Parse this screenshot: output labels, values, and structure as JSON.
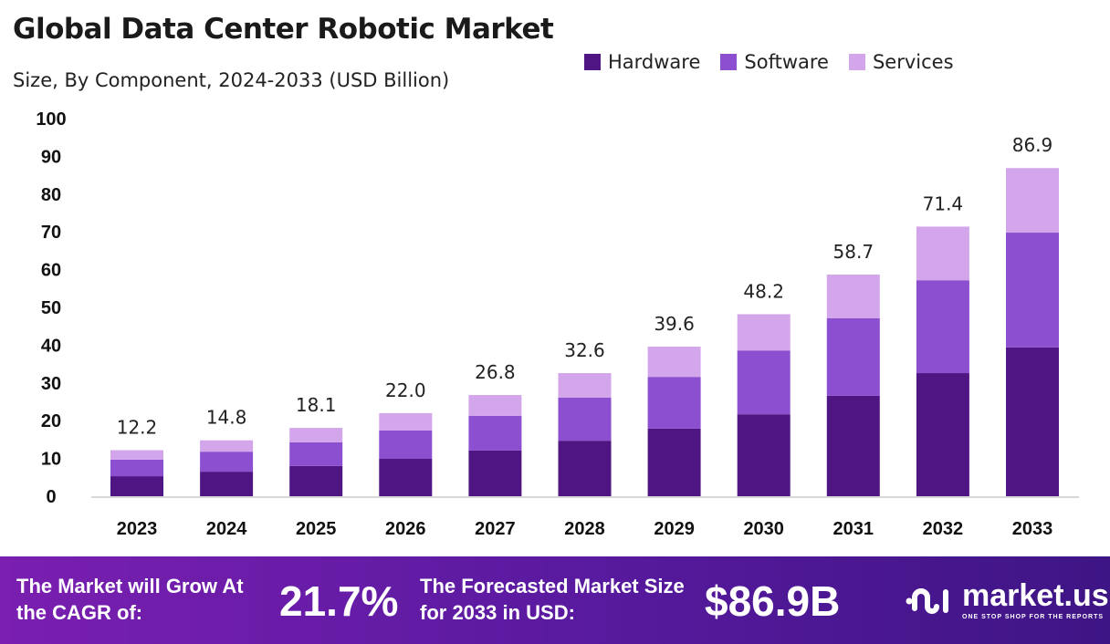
{
  "title": "Global Data Center Robotic Market",
  "subtitle": "Size, By Component, 2024-2033 (USD Billion)",
  "chart_data": {
    "type": "bar",
    "stacked": true,
    "title": "Global Data Center Robotic Market",
    "subtitle": "Size, By Component, 2024-2033 (USD Billion)",
    "categories": [
      "2023",
      "2024",
      "2025",
      "2026",
      "2027",
      "2028",
      "2029",
      "2030",
      "2031",
      "2032",
      "2033"
    ],
    "series": [
      {
        "name": "Hardware",
        "color": "#4f1683",
        "values": [
          5.3,
          6.5,
          8.0,
          9.9,
          12.1,
          14.7,
          17.9,
          21.7,
          26.6,
          32.6,
          39.4
        ]
      },
      {
        "name": "Software",
        "color": "#8b4fcf",
        "values": [
          4.4,
          5.3,
          6.3,
          7.5,
          9.2,
          11.4,
          13.7,
          16.9,
          20.5,
          24.6,
          30.4
        ]
      },
      {
        "name": "Services",
        "color": "#d3a6ec",
        "values": [
          2.5,
          3.0,
          3.8,
          4.6,
          5.5,
          6.5,
          8.0,
          9.6,
          11.6,
          14.2,
          17.1
        ]
      }
    ],
    "totals": [
      "12.2",
      "14.8",
      "18.1",
      "22.0",
      "26.8",
      "32.6",
      "39.6",
      "48.2",
      "58.7",
      "71.4",
      "86.9"
    ],
    "yticks": [
      "0",
      "10",
      "20",
      "30",
      "40",
      "50",
      "60",
      "70",
      "80",
      "90",
      "100"
    ],
    "ylim": [
      0,
      100
    ],
    "grid": false,
    "legend": "top-right",
    "xlabel": "",
    "ylabel": ""
  },
  "footer": {
    "cagr_label": "The Market will Grow At the CAGR of:",
    "cagr_value": "21.7%",
    "size_label": "The Forecasted Market Size for 2033 in USD:",
    "size_value": "$86.9B",
    "logo_name": "market.us",
    "logo_tagline": "ONE STOP SHOP FOR THE REPORTS"
  }
}
